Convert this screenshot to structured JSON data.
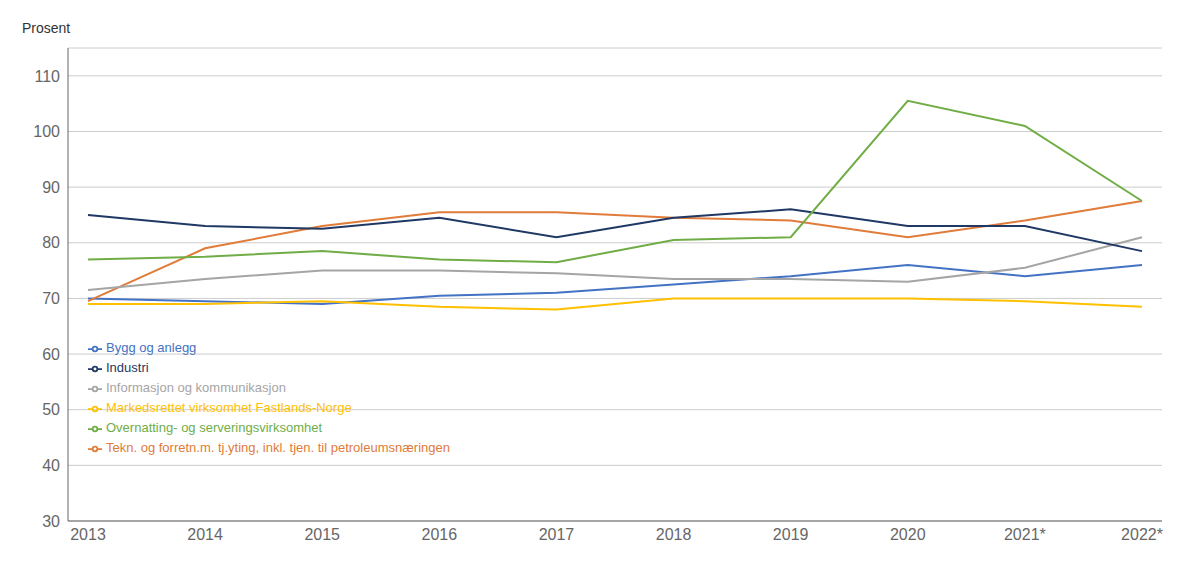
{
  "chart_data": {
    "type": "line",
    "ylabel": "Prosent",
    "categories": [
      "2013",
      "2014",
      "2015",
      "2016",
      "2017",
      "2018",
      "2019",
      "2020",
      "2021*",
      "2022*"
    ],
    "series": [
      {
        "name": "Bygg og anlegg",
        "color": "#4472C4",
        "values": [
          70.0,
          69.5,
          69.0,
          70.5,
          71.0,
          72.5,
          74.0,
          76.0,
          74.0,
          76.0
        ]
      },
      {
        "name": "Tekn. og forretn.m. tj.yting, inkl. tjen. til petroleumsnæringen",
        "color": "#E07B39",
        "values": [
          69.5,
          79.0,
          83.0,
          85.5,
          85.5,
          84.5,
          84.0,
          81.0,
          84.0,
          87.5
        ]
      },
      {
        "name": "Informasjon og kommunikasjon",
        "color": "#A5A5A5",
        "values": [
          71.5,
          73.5,
          75.0,
          75.0,
          74.5,
          73.5,
          73.5,
          73.0,
          75.5,
          81.0
        ]
      },
      {
        "name": "Markedsrettet virksomhet Fastlands-Norge",
        "color": "#FFC000",
        "values": [
          69.0,
          69.0,
          69.5,
          68.5,
          68.0,
          70.0,
          70.0,
          70.0,
          69.5,
          68.5
        ]
      },
      {
        "name": "Industri",
        "color": "#1F3864",
        "values": [
          85.0,
          83.0,
          82.5,
          84.5,
          81.0,
          84.5,
          86.0,
          83.0,
          83.0,
          78.5
        ]
      },
      {
        "name": "Overnatting- og serveringsvirksomhet",
        "color": "#70AD47",
        "values": [
          77.0,
          77.5,
          78.5,
          77.0,
          76.5,
          80.5,
          81.0,
          105.5,
          101.0,
          87.5
        ]
      }
    ],
    "ylim": [
      30,
      115
    ],
    "yticks": [
      30,
      40,
      50,
      60,
      70,
      80,
      90,
      100,
      110
    ],
    "grid": true,
    "legend": "lower left"
  }
}
